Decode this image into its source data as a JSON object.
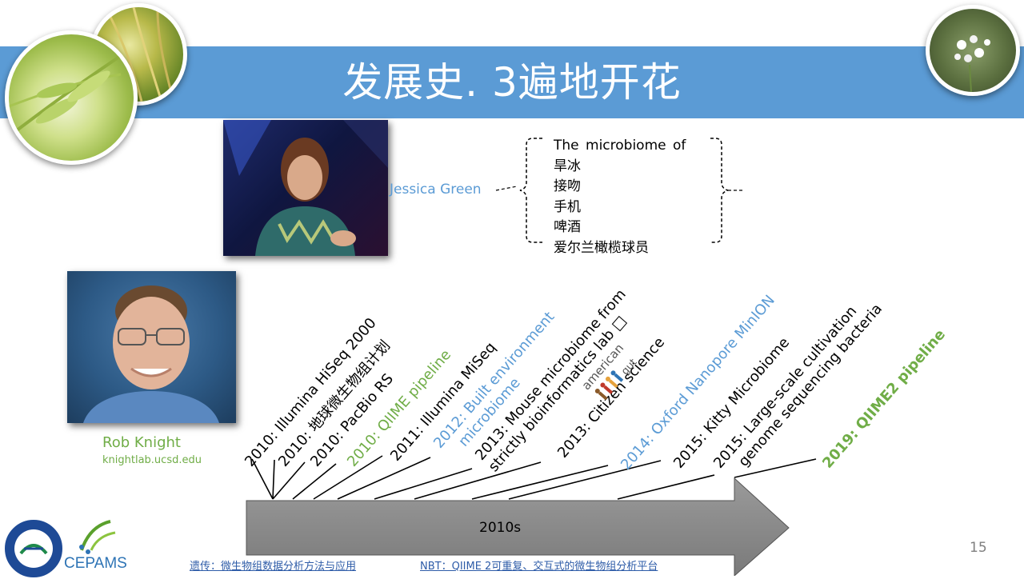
{
  "slide": {
    "title": "发展史. 3遍地开花",
    "page_number": "15"
  },
  "jessica": {
    "name": "Jessica Green",
    "heading": "The microbiome of",
    "items": [
      "旱冰",
      "接吻",
      "手机",
      "啤酒",
      "爱尔兰橄榄球员"
    ]
  },
  "rob": {
    "name": "Rob Knight",
    "url": "knightlab.ucsd.edu"
  },
  "timeline": {
    "arrow_label": "2010s",
    "events": [
      {
        "lines": [
          "2010: Illumina HiSeq 2000"
        ],
        "color": "#000000"
      },
      {
        "lines": [
          "2010: 地球微生物组计划"
        ],
        "color": "#000000"
      },
      {
        "lines": [
          "2010: PacBio RS"
        ],
        "color": "#000000"
      },
      {
        "lines": [
          "2010: QIIME pipeline"
        ],
        "color": "#70ad47"
      },
      {
        "lines": [
          "2011: Illumina MiSeq"
        ],
        "color": "#000000"
      },
      {
        "lines": [
          "2012: Built environment",
          "microbiome"
        ],
        "color": "#5b9bd5"
      },
      {
        "lines": [
          "2013: Mouse microbiome from",
          "strictly bioinformatics lab □"
        ],
        "color": "#000000"
      },
      {
        "lines": [
          "2013:        Citizen science"
        ],
        "color": "#000000"
      },
      {
        "lines": [
          "2014: Oxford Nanopore MinION"
        ],
        "color": "#5b9bd5"
      },
      {
        "lines": [
          "2015: Kitty Microbiome"
        ],
        "color": "#000000"
      },
      {
        "lines": [
          "2015: Large-scale cultivation",
          "genome sequencing bacteria"
        ],
        "color": "#000000"
      },
      {
        "lines": [
          "2019: QIIME2 pipeline"
        ],
        "color": "#70ad47"
      }
    ],
    "american_gut_logo": "american gut"
  },
  "footer": {
    "link1": "遗传：微生物组数据分析方法与应用",
    "link2": "NBT：QIIME 2可重复、交互式的微生物组分析平台",
    "cepams": "CEPAMS"
  },
  "colors": {
    "band": "#5b9bd5",
    "green": "#70ad47",
    "blue": "#5b9bd5",
    "arrow": "#8c8c8c"
  }
}
